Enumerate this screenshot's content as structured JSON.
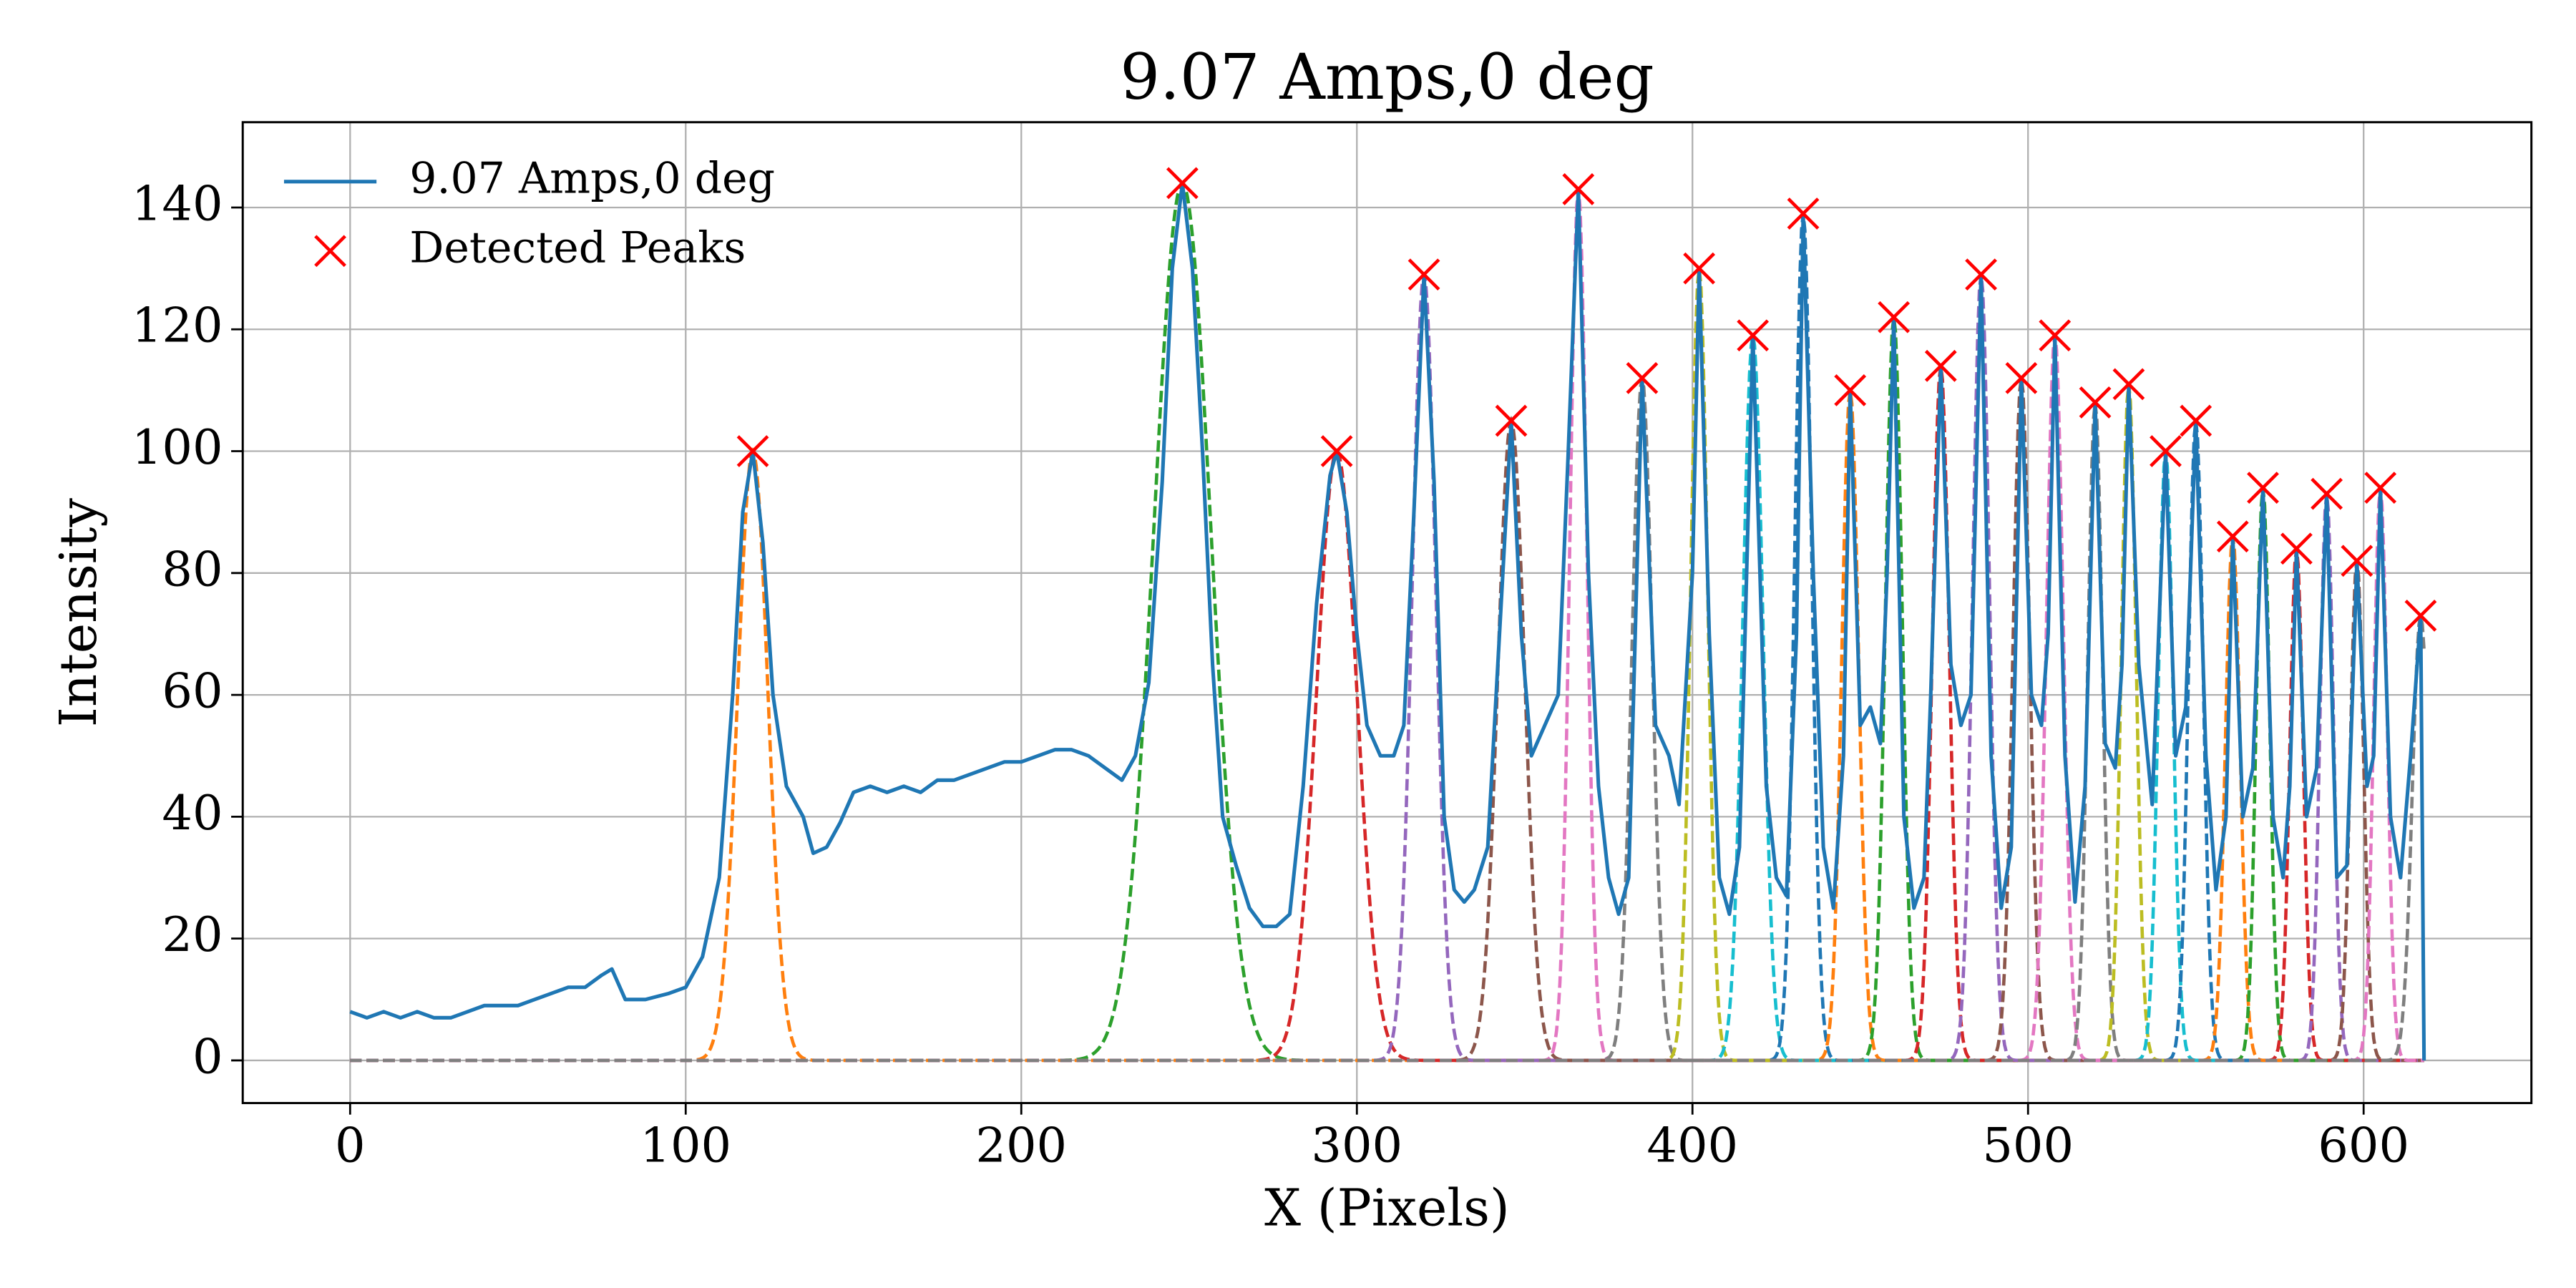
{
  "chart_data": {
    "type": "line",
    "title": "9.07 Amps,0 deg",
    "x_label": "X (Pixels)",
    "y_label": "Intensity",
    "xlim": [
      -32,
      650
    ],
    "ylim": [
      -7,
      154
    ],
    "xticks": [
      0,
      100,
      200,
      300,
      400,
      500,
      600
    ],
    "yticks": [
      0,
      20,
      40,
      60,
      80,
      100,
      120,
      140
    ],
    "grid": true,
    "legend": "upper left",
    "series": [
      {
        "name": "9.07 Amps,0 deg",
        "color": "#1f77b4",
        "style": "line",
        "x": [
          0,
          5,
          10,
          15,
          20,
          25,
          30,
          35,
          40,
          45,
          50,
          55,
          60,
          65,
          70,
          75,
          78,
          82,
          88,
          95,
          100,
          105,
          110,
          114,
          117,
          120,
          123,
          126,
          130,
          135,
          138,
          142,
          146,
          150,
          155,
          160,
          165,
          170,
          175,
          180,
          185,
          190,
          195,
          200,
          205,
          210,
          215,
          220,
          225,
          230,
          234,
          238,
          242,
          245,
          248,
          251,
          254,
          257,
          260,
          264,
          268,
          272,
          276,
          280,
          284,
          288,
          292,
          294,
          297,
          300,
          303,
          307,
          311,
          314,
          317,
          320,
          323,
          326,
          329,
          332,
          335,
          339,
          343,
          346,
          349,
          352,
          356,
          360,
          363,
          366,
          369,
          372,
          375,
          378,
          381,
          385,
          389,
          393,
          396,
          400,
          402,
          405,
          408,
          411,
          414,
          418,
          422,
          425,
          428,
          431,
          433,
          436,
          439,
          442,
          445,
          447,
          450,
          453,
          456,
          458,
          460,
          463,
          466,
          469,
          471,
          474,
          477,
          480,
          483,
          486,
          489,
          492,
          495,
          498,
          501,
          504,
          506,
          508,
          511,
          514,
          517,
          520,
          523,
          526,
          528,
          530,
          533,
          537,
          541,
          544,
          547,
          550,
          553,
          556,
          559,
          561,
          564,
          567,
          570,
          573,
          576,
          578,
          580,
          583,
          586,
          589,
          592,
          595,
          598,
          601,
          603,
          605,
          608,
          611,
          614,
          617,
          618
        ],
        "values": [
          8,
          7,
          8,
          7,
          8,
          7,
          7,
          8,
          9,
          9,
          9,
          10,
          11,
          12,
          12,
          14,
          15,
          10,
          10,
          11,
          12,
          17,
          30,
          60,
          90,
          100,
          85,
          60,
          45,
          40,
          34,
          35,
          39,
          44,
          45,
          44,
          45,
          44,
          46,
          46,
          47,
          48,
          49,
          49,
          50,
          51,
          51,
          50,
          48,
          46,
          50,
          62,
          95,
          130,
          144,
          130,
          100,
          65,
          40,
          32,
          25,
          22,
          22,
          24,
          45,
          75,
          96,
          100,
          90,
          70,
          55,
          50,
          50,
          55,
          90,
          129,
          95,
          40,
          28,
          26,
          28,
          35,
          75,
          105,
          70,
          50,
          55,
          60,
          100,
          143,
          80,
          45,
          30,
          24,
          30,
          112,
          55,
          50,
          42,
          80,
          130,
          70,
          30,
          24,
          35,
          119,
          45,
          30,
          27,
          70,
          139,
          80,
          35,
          25,
          50,
          110,
          55,
          58,
          52,
          80,
          122,
          40,
          25,
          30,
          60,
          114,
          65,
          55,
          60,
          129,
          50,
          25,
          35,
          112,
          60,
          55,
          70,
          119,
          50,
          26,
          45,
          108,
          52,
          48,
          65,
          111,
          65,
          42,
          100,
          50,
          58,
          105,
          50,
          28,
          40,
          86,
          40,
          48,
          94,
          40,
          30,
          45,
          84,
          40,
          48,
          93,
          30,
          32,
          82,
          45,
          50,
          94,
          40,
          30,
          50,
          73,
          0
        ]
      },
      {
        "name": "Detected Peaks",
        "color": "#ff0000",
        "style": "x-marker",
        "x": [
          120,
          248,
          294,
          320,
          346,
          366,
          385,
          402,
          418,
          433,
          447,
          460,
          474,
          486,
          498,
          508,
          520,
          530,
          541,
          550,
          561,
          570,
          580,
          589,
          598,
          605,
          617
        ],
        "values": [
          100,
          144,
          100,
          129,
          105,
          143,
          112,
          130,
          119,
          139,
          110,
          122,
          114,
          129,
          112,
          119,
          108,
          111,
          100,
          105,
          86,
          94,
          84,
          93,
          82,
          94,
          73
        ]
      }
    ],
    "fits": [
      {
        "center": 120,
        "amplitude": 100,
        "sigma": 4.5,
        "color": "#ff7f0e"
      },
      {
        "center": 248,
        "amplitude": 144,
        "sigma": 8.5,
        "color": "#2ca02c"
      },
      {
        "center": 294,
        "amplitude": 100,
        "sigma": 6,
        "color": "#d62728"
      },
      {
        "center": 320,
        "amplitude": 129,
        "sigma": 3.5,
        "color": "#9467bd"
      },
      {
        "center": 346,
        "amplitude": 105,
        "sigma": 4,
        "color": "#8c564b"
      },
      {
        "center": 366,
        "amplitude": 143,
        "sigma": 2.5,
        "color": "#e377c2"
      },
      {
        "center": 385,
        "amplitude": 112,
        "sigma": 3,
        "color": "#7f7f7f"
      },
      {
        "center": 402,
        "amplitude": 130,
        "sigma": 2.5,
        "color": "#bcbd22"
      },
      {
        "center": 418,
        "amplitude": 119,
        "sigma": 3,
        "color": "#17becf"
      },
      {
        "center": 433,
        "amplitude": 139,
        "sigma": 2.5,
        "color": "#1f77b4"
      },
      {
        "center": 447,
        "amplitude": 110,
        "sigma": 2.5,
        "color": "#ff7f0e"
      },
      {
        "center": 460,
        "amplitude": 122,
        "sigma": 2.5,
        "color": "#2ca02c"
      },
      {
        "center": 474,
        "amplitude": 114,
        "sigma": 2.5,
        "color": "#d62728"
      },
      {
        "center": 486,
        "amplitude": 129,
        "sigma": 2.5,
        "color": "#9467bd"
      },
      {
        "center": 498,
        "amplitude": 112,
        "sigma": 2.5,
        "color": "#8c564b"
      },
      {
        "center": 508,
        "amplitude": 119,
        "sigma": 2.5,
        "color": "#e377c2"
      },
      {
        "center": 520,
        "amplitude": 108,
        "sigma": 2.2,
        "color": "#7f7f7f"
      },
      {
        "center": 530,
        "amplitude": 111,
        "sigma": 2.2,
        "color": "#bcbd22"
      },
      {
        "center": 541,
        "amplitude": 100,
        "sigma": 2.2,
        "color": "#17becf"
      },
      {
        "center": 550,
        "amplitude": 105,
        "sigma": 2.2,
        "color": "#1f77b4"
      },
      {
        "center": 561,
        "amplitude": 86,
        "sigma": 2.2,
        "color": "#ff7f0e"
      },
      {
        "center": 570,
        "amplitude": 94,
        "sigma": 2,
        "color": "#2ca02c"
      },
      {
        "center": 580,
        "amplitude": 84,
        "sigma": 2,
        "color": "#d62728"
      },
      {
        "center": 589,
        "amplitude": 93,
        "sigma": 2,
        "color": "#9467bd"
      },
      {
        "center": 598,
        "amplitude": 82,
        "sigma": 2,
        "color": "#8c564b"
      },
      {
        "center": 605,
        "amplitude": 94,
        "sigma": 2,
        "color": "#e377c2"
      },
      {
        "center": 617,
        "amplitude": 73,
        "sigma": 2.5,
        "color": "#7f7f7f"
      }
    ]
  }
}
